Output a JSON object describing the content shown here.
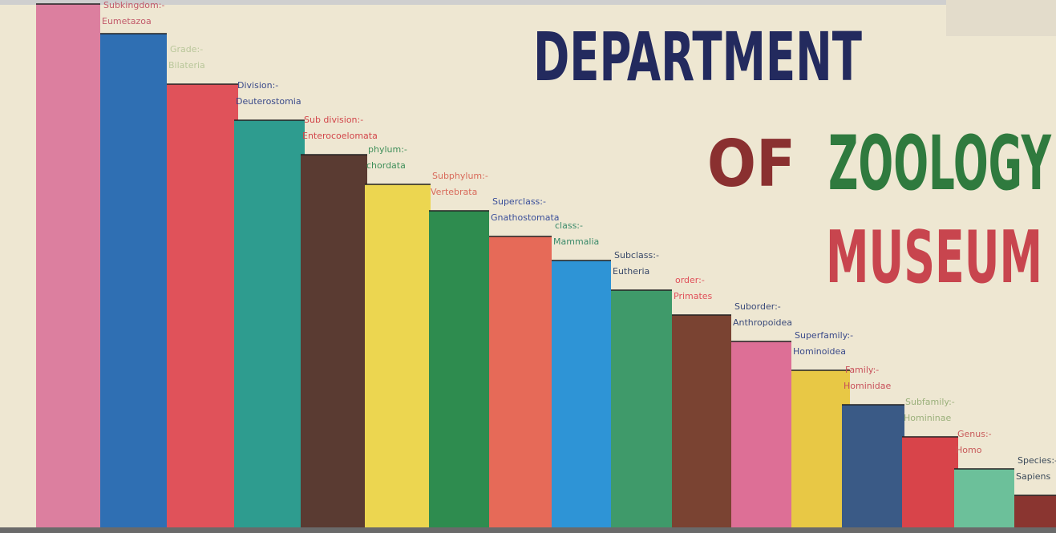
{
  "title": {
    "line1": "DEPARTMENT",
    "line2a": "OF",
    "line2b": "ZOOLOGY",
    "line3": "MUSEUM"
  },
  "steps": [
    {
      "color": "#dc7f9f"
    },
    {
      "rank": "Subkingdom:-",
      "name": "Eumetazoa",
      "color": "#2f6fb3",
      "label_color": "#c25a6a"
    },
    {
      "rank": "Grade:-",
      "name": "Bilateria",
      "color": "#e0525a",
      "label_color": "#b9c79a"
    },
    {
      "rank": "Division:-",
      "name": "Deuterostomia",
      "color": "#2e9c8f",
      "label_color": "#3a4a8a"
    },
    {
      "rank": "Sub division:-",
      "name": "Enterocoelomata",
      "color": "#5a3b32",
      "label_color": "#d2464a"
    },
    {
      "rank": "phylum:-",
      "name": "chordata",
      "color": "#ecd650",
      "label_color": "#3f8f5a"
    },
    {
      "rank": "Subphylum:-",
      "name": "Vertebrata",
      "color": "#2e8c4f",
      "label_color": "#d86a5a"
    },
    {
      "rank": "Superclass:-",
      "name": "Gnathostomata",
      "color": "#e66a58",
      "label_color": "#3a4f9a"
    },
    {
      "rank": "class:-",
      "name": "Mammalia",
      "color": "#2e94d6",
      "label_color": "#3a8a6a"
    },
    {
      "rank": "Subclass:-",
      "name": "Eutheria",
      "color": "#3f9a6a",
      "label_color": "#3a4a6a"
    },
    {
      "rank": "order:-",
      "name": "Primates",
      "color": "#7a4332",
      "label_color": "#e0505a"
    },
    {
      "rank": "Suborder:-",
      "name": "Anthropoidea",
      "color": "#dd6f96",
      "label_color": "#3a4a7a"
    },
    {
      "rank": "Superfamily:-",
      "name": "Hominoidea",
      "color": "#e8c845",
      "label_color": "#3a4a8a"
    },
    {
      "rank": "Family:-",
      "name": "Hominidae",
      "color": "#3a5a86",
      "label_color": "#c8505a"
    },
    {
      "rank": "Subfamily:-",
      "name": "Homininae",
      "color": "#d8444a",
      "label_color": "#9ab07a"
    },
    {
      "rank": "Genus:-",
      "name": "Homo",
      "color": "#6cc09a",
      "label_color": "#c85a5a"
    },
    {
      "rank": "Species:-",
      "name": "Sapiens",
      "color": "#8a3530",
      "label_color": "#3a4a5a"
    }
  ]
}
